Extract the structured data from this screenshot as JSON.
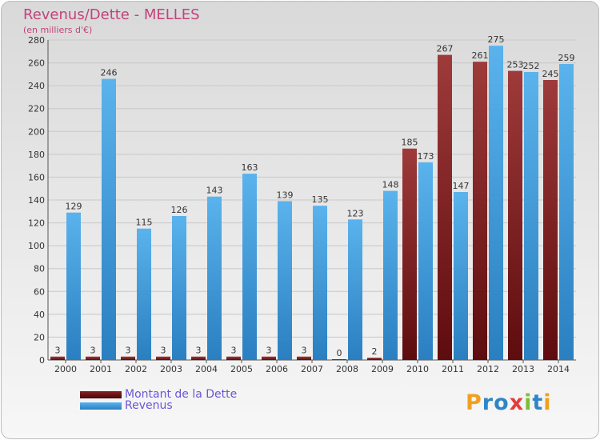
{
  "title": "Revenus/Dette - MELLES",
  "subtitle": "(en milliers d'€)",
  "logo_text": "Proxiti",
  "legend": [
    {
      "label": "Montant de la Dette",
      "color": "#6e1214"
    },
    {
      "label": "Revenus",
      "color": "#4aa3df"
    }
  ],
  "colors": {
    "debt_dark": "#6e1214",
    "debt_light": "#9e3a3a",
    "rev_dark": "#2f86c6",
    "rev_light": "#56b0ea",
    "title": "#c2437a",
    "legend_text": "#6a56d6"
  },
  "chart_data": {
    "type": "bar",
    "title": "Revenus/Dette - MELLES",
    "subtitle": "(en milliers d'€)",
    "categories": [
      "2000",
      "2001",
      "2002",
      "2003",
      "2004",
      "2005",
      "2006",
      "2007",
      "2008",
      "2009",
      "2010",
      "2011",
      "2012",
      "2013",
      "2014"
    ],
    "series": [
      {
        "name": "Montant de la Dette",
        "values": [
          3,
          3,
          3,
          3,
          3,
          3,
          3,
          3,
          0,
          2,
          185,
          267,
          261,
          253,
          245
        ]
      },
      {
        "name": "Revenus",
        "values": [
          129,
          246,
          115,
          126,
          143,
          163,
          139,
          135,
          123,
          148,
          173,
          147,
          275,
          252,
          259
        ]
      }
    ],
    "ylim": [
      0,
      280
    ],
    "yticks": [
      0,
      20,
      40,
      60,
      80,
      100,
      120,
      140,
      160,
      180,
      200,
      220,
      240,
      260,
      280
    ],
    "grid": true,
    "legend_position": "bottom-left"
  }
}
